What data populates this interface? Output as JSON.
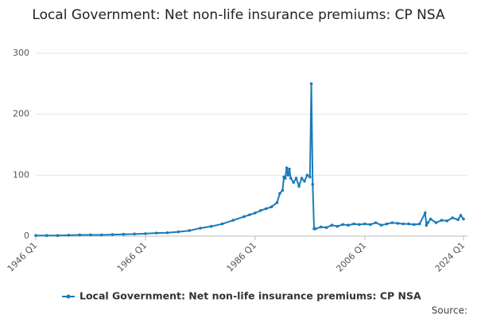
{
  "chart_data": {
    "type": "line",
    "title": "Local Government: Net non-life insurance premiums: CP NSA",
    "source": "Source:",
    "x": [
      1946,
      1948,
      1950,
      1952,
      1954,
      1956,
      1958,
      1960,
      1962,
      1964,
      1966,
      1968,
      1970,
      1972,
      1974,
      1976,
      1978,
      1980,
      1982,
      1984,
      1985,
      1986,
      1987,
      1988,
      1989,
      1990,
      1990.5,
      1991,
      1991.25,
      1991.5,
      1991.75,
      1992,
      1992.25,
      1992.5,
      1993,
      1993.5,
      1994,
      1994.5,
      1995,
      1995.5,
      1996,
      1996.25,
      1996.5,
      1996.75,
      1997,
      1998,
      1999,
      2000,
      2001,
      2002,
      2003,
      2004,
      2005,
      2006,
      2007,
      2008,
      2009,
      2010,
      2011,
      2012,
      2013,
      2014,
      2015,
      2016,
      2017,
      2017.25,
      2017.5,
      2018,
      2019,
      2020,
      2021,
      2022,
      2023,
      2023.5,
      2024
    ],
    "series": [
      {
        "name": "Local Government: Net non-life insurance premiums: CP NSA",
        "color": "#1a7bb9",
        "values": [
          1,
          1,
          1,
          1.5,
          2,
          2,
          2,
          2.5,
          3,
          3.5,
          4,
          5,
          5.5,
          7,
          9,
          13,
          16,
          20,
          26,
          32,
          35,
          38,
          42,
          45,
          48,
          55,
          70,
          75,
          97,
          95,
          112,
          100,
          110,
          95,
          88,
          95,
          82,
          95,
          90,
          100,
          97,
          250,
          85,
          12,
          12,
          15,
          14,
          18,
          16,
          19,
          18,
          20,
          19,
          20,
          19,
          22,
          18,
          20,
          22,
          21,
          20,
          20,
          19,
          20,
          38,
          18,
          22,
          28,
          22,
          26,
          25,
          30,
          27,
          34,
          28
        ]
      }
    ],
    "xlim": [
      1946,
      2024
    ],
    "xticks": [
      {
        "value": 1946,
        "label": "1946 Q1"
      },
      {
        "value": 1966,
        "label": "1966 Q1"
      },
      {
        "value": 1986,
        "label": "1986 Q1"
      },
      {
        "value": 2006,
        "label": "2006 Q1"
      },
      {
        "value": 2024,
        "label": "2024 Q1"
      }
    ],
    "ylim": [
      0,
      300
    ],
    "yticks": [
      0,
      100,
      200,
      300
    ],
    "grid": true
  }
}
